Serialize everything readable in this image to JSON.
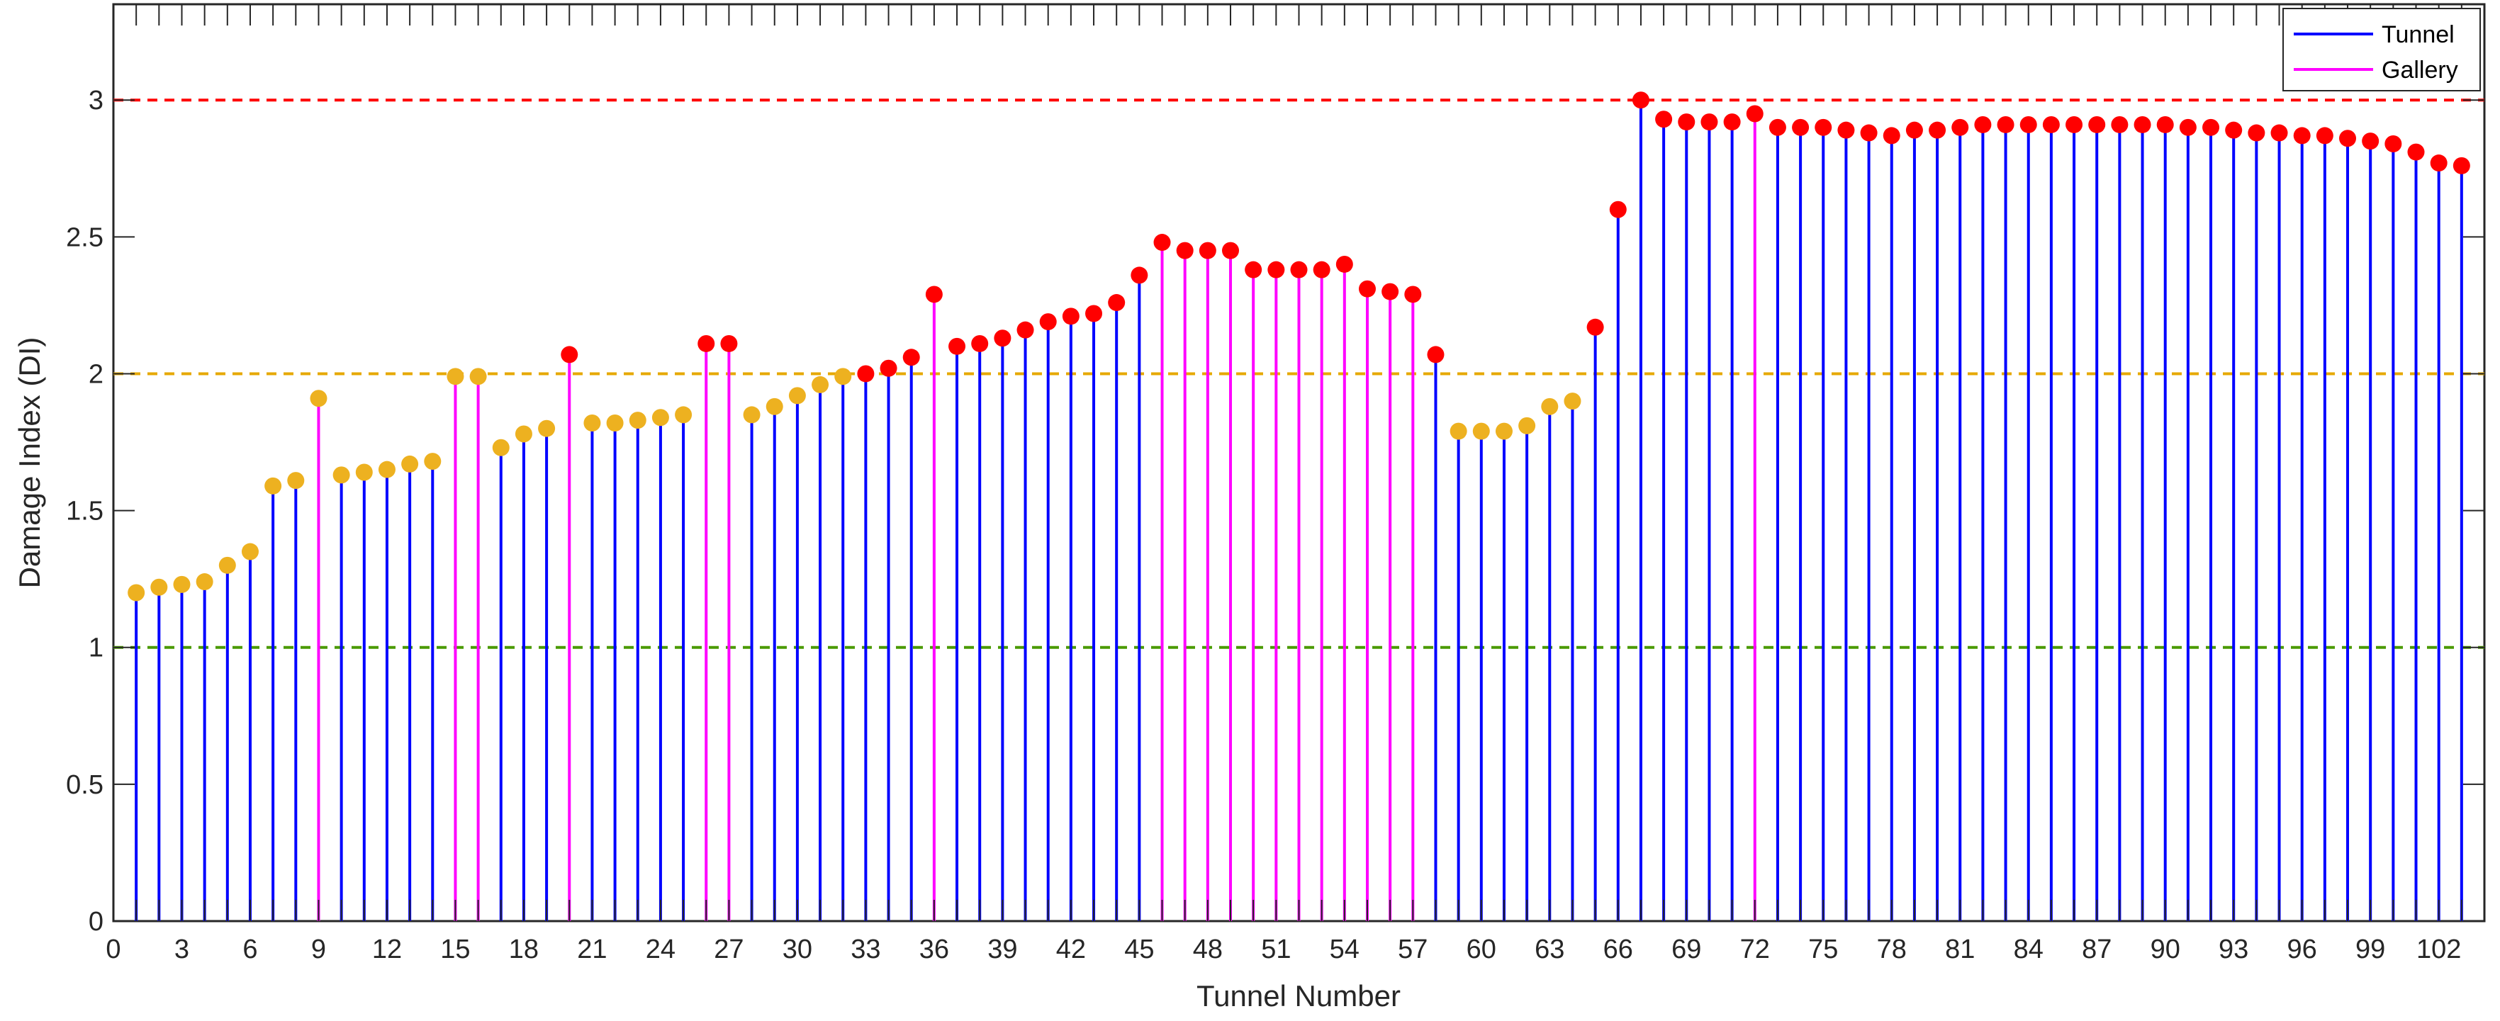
{
  "chart_data": {
    "type": "stem",
    "xlabel": "Tunnel Number",
    "ylabel": "Damage Index (DI)",
    "xlim": [
      0,
      104
    ],
    "ylim": [
      0,
      3.35
    ],
    "xticks": [
      0,
      3,
      6,
      9,
      12,
      15,
      18,
      21,
      24,
      27,
      30,
      33,
      36,
      39,
      42,
      45,
      48,
      51,
      54,
      57,
      60,
      63,
      66,
      69,
      72,
      75,
      78,
      81,
      84,
      87,
      90,
      93,
      96,
      99,
      102
    ],
    "yticks": [
      0,
      0.5,
      1,
      1.5,
      2,
      2.5,
      3
    ],
    "ytick_labels": [
      "0",
      "0.5",
      "1",
      "1.5",
      "2",
      "2.5",
      "3"
    ],
    "grid": false,
    "legend": {
      "position": "top-right",
      "entries": [
        {
          "name": "Tunnel",
          "color": "#0000ff"
        },
        {
          "name": "Gallery",
          "color": "#ff00ff"
        }
      ]
    },
    "gallery_numbers": [
      9,
      15,
      16,
      20,
      26,
      27,
      36,
      46,
      47,
      48,
      49,
      50,
      51,
      52,
      53,
      54,
      55,
      56,
      57,
      72
    ],
    "thresholds": [
      {
        "value": 1,
        "color": "#4a9a00"
      },
      {
        "value": 2,
        "color": "#e6a800"
      },
      {
        "value": 3,
        "color": "#ff0000"
      }
    ],
    "marker_colors": {
      "moderate": "#edb120",
      "severe": "#ff0000"
    },
    "x": [
      1,
      2,
      3,
      4,
      5,
      6,
      7,
      8,
      9,
      10,
      11,
      12,
      13,
      14,
      15,
      16,
      17,
      18,
      19,
      20,
      21,
      22,
      23,
      24,
      25,
      26,
      27,
      28,
      29,
      30,
      31,
      32,
      33,
      34,
      35,
      36,
      37,
      38,
      39,
      40,
      41,
      42,
      43,
      44,
      45,
      46,
      47,
      48,
      49,
      50,
      51,
      52,
      53,
      54,
      55,
      56,
      57,
      58,
      59,
      60,
      61,
      62,
      63,
      64,
      65,
      66,
      67,
      68,
      69,
      70,
      71,
      72,
      73,
      74,
      75,
      76,
      77,
      78,
      79,
      80,
      81,
      82,
      83,
      84,
      85,
      86,
      87,
      88,
      89,
      90,
      91,
      92,
      93,
      94,
      95,
      96,
      97,
      98,
      99,
      100,
      101,
      102,
      103
    ],
    "values": [
      1.2,
      1.22,
      1.23,
      1.24,
      1.3,
      1.35,
      1.59,
      1.61,
      1.91,
      1.63,
      1.64,
      1.65,
      1.67,
      1.68,
      1.99,
      1.99,
      1.73,
      1.78,
      1.8,
      2.07,
      1.82,
      1.82,
      1.83,
      1.84,
      1.85,
      2.11,
      2.11,
      1.85,
      1.88,
      1.92,
      1.96,
      1.99,
      2.0,
      2.02,
      2.06,
      2.29,
      2.1,
      2.11,
      2.13,
      2.16,
      2.19,
      2.21,
      2.22,
      2.26,
      2.36,
      2.48,
      2.45,
      2.45,
      2.45,
      2.38,
      2.38,
      2.38,
      2.38,
      2.4,
      2.31,
      2.3,
      2.29,
      2.07,
      1.79,
      1.79,
      1.79,
      1.81,
      1.88,
      1.9,
      2.17,
      2.6,
      3.0,
      2.93,
      2.92,
      2.92,
      2.92,
      2.95,
      2.9,
      2.9,
      2.9,
      2.89,
      2.88,
      2.87,
      2.89,
      2.89,
      2.9,
      2.91,
      2.91,
      2.91,
      2.91,
      2.91,
      2.91,
      2.91,
      2.91,
      2.91,
      2.9,
      2.9,
      2.89,
      2.88,
      2.88,
      2.87,
      2.87,
      2.86,
      2.85,
      2.84,
      2.81,
      2.77,
      2.76
    ]
  }
}
